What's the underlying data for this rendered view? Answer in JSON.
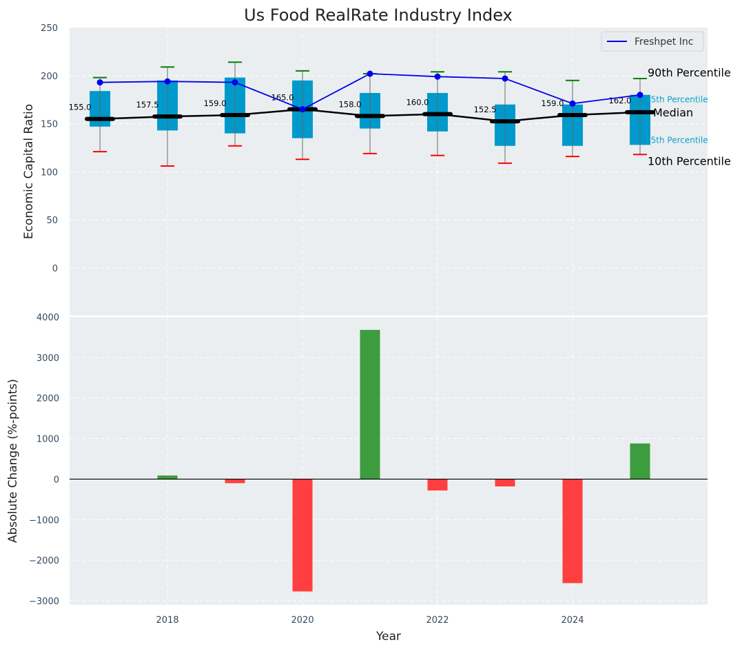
{
  "chart_data": [
    {
      "type": "box",
      "title": "Us Food RealRate Industry Index",
      "xlabel": "",
      "ylabel": "Economic Capital Ratio",
      "ylim": [
        0,
        250
      ],
      "yticks": [
        0,
        50,
        100,
        150,
        200,
        250
      ],
      "x": [
        2017,
        2018,
        2019,
        2020,
        2021,
        2022,
        2023,
        2024,
        2025
      ],
      "grid": true,
      "percentiles": {
        "p10": [
          121,
          106,
          127,
          113,
          119,
          117,
          109,
          116,
          118
        ],
        "p25": [
          147,
          143,
          140,
          135,
          145,
          142,
          127,
          127,
          128
        ],
        "median": [
          155.0,
          157.5,
          159.0,
          165.0,
          158.0,
          160.0,
          152.5,
          159.0,
          162.0
        ],
        "p75": [
          184,
          195,
          198,
          195,
          182,
          182,
          170,
          170,
          180
        ],
        "p90": [
          198,
          209,
          214,
          205,
          202,
          204,
          204,
          195,
          197
        ]
      },
      "median_labels": [
        "155.0",
        "157.5",
        "159.0",
        "165.0",
        "158.0",
        "160.0",
        "152.5",
        "159.0",
        "162.0"
      ],
      "series": [
        {
          "name": "Freshpet Inc",
          "values": [
            193,
            194,
            193,
            165,
            202,
            199,
            197,
            171,
            180
          ],
          "color": "#0000ee"
        }
      ],
      "percentile_annotations": {
        "p90": "90th Percentile",
        "p75": "75th Percentile",
        "median": "Median",
        "p25": "25th Percentile",
        "p10": "10th Percentile"
      },
      "legend": {
        "position": "top-right",
        "entries": [
          "Freshpet Inc"
        ]
      }
    },
    {
      "type": "bar",
      "xlabel": "Year",
      "ylabel": "Absolute Change (%-points)",
      "ylim": [
        -3000,
        4000
      ],
      "yticks": [
        -3000,
        -2000,
        -1000,
        0,
        1000,
        2000,
        3000,
        4000
      ],
      "ytick_labels": [
        "−3000",
        "−2000",
        "−1000",
        "0",
        "1000",
        "2000",
        "3000",
        "4000"
      ],
      "x": [
        2018,
        2019,
        2020,
        2021,
        2022,
        2023,
        2024,
        2025
      ],
      "values": [
        90,
        -100,
        -2770,
        3680,
        -280,
        -180,
        -2565,
        880
      ],
      "xticks": [
        2018,
        2020,
        2022,
        2024
      ],
      "xlim": [
        2016.55,
        2026
      ],
      "grid": true
    }
  ],
  "colors": {
    "plot_bg": "#eaeef0",
    "box": "#0099cc",
    "median": "#000000",
    "p90_cap": "#008000",
    "p10_cap": "#ff0000",
    "firm_line": "#0000ee",
    "bar_positive": "#3d9c3d",
    "bar_negative": "#ff3f3f",
    "small_annotation": "#0aa0cc"
  }
}
